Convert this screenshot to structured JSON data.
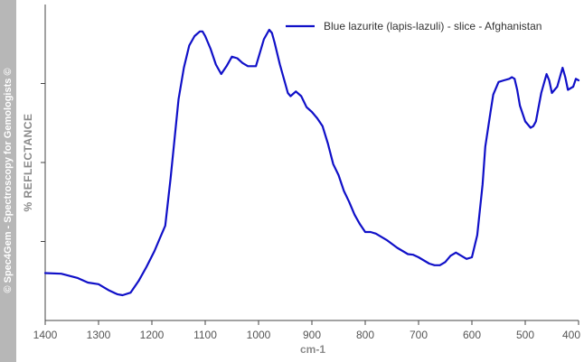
{
  "watermark": "© Spec4Gem - Spectroscopy for Gemologists ©",
  "chart_data": {
    "type": "line",
    "title": "",
    "xlabel": "cm-1",
    "ylabel": "% REFLECTANCE",
    "xlim": [
      1400,
      400
    ],
    "ylim": [
      0,
      100
    ],
    "x_ticks": [
      1400,
      1300,
      1200,
      1100,
      1000,
      900,
      800,
      700,
      600,
      500,
      400
    ],
    "x_tick_labels": [
      "1400",
      "1300",
      "1200",
      "1100",
      "1000",
      "900",
      "800",
      "700",
      "600",
      "500",
      "400"
    ],
    "y_ticks": [
      25,
      50,
      75
    ],
    "grid": false,
    "legend_position": "top-right",
    "series": [
      {
        "name": "Blue lazurite (lapis-lazuli) - slice - Afghanistan",
        "color": "#1010c8",
        "x": [
          1400,
          1370,
          1340,
          1320,
          1300,
          1280,
          1265,
          1255,
          1240,
          1225,
          1210,
          1195,
          1185,
          1175,
          1165,
          1150,
          1140,
          1130,
          1120,
          1110,
          1105,
          1100,
          1090,
          1080,
          1070,
          1060,
          1050,
          1040,
          1030,
          1020,
          1005,
          990,
          980,
          975,
          970,
          960,
          950,
          945,
          940,
          930,
          920,
          910,
          900,
          890,
          880,
          870,
          860,
          850,
          840,
          830,
          820,
          810,
          800,
          790,
          780,
          760,
          740,
          730,
          720,
          710,
          700,
          690,
          680,
          670,
          660,
          650,
          640,
          630,
          620,
          610,
          600,
          590,
          580,
          575,
          565,
          560,
          550,
          540,
          530,
          525,
          520,
          515,
          510,
          500,
          490,
          485,
          480,
          470,
          460,
          455,
          450,
          440,
          430,
          425,
          420,
          410,
          405,
          400
        ],
        "y": [
          15.0,
          14.8,
          13.5,
          12.0,
          11.5,
          9.5,
          8.3,
          8.0,
          8.8,
          12.5,
          17.0,
          22.0,
          26.0,
          30.0,
          45.0,
          70.0,
          80.0,
          87.0,
          90.0,
          91.5,
          91.5,
          90.0,
          86.0,
          81.0,
          78.0,
          80.5,
          83.5,
          83.0,
          81.5,
          80.5,
          80.5,
          89.0,
          92.0,
          91.0,
          88.0,
          81.0,
          75.0,
          72.0,
          71.0,
          72.5,
          71.0,
          67.5,
          66.0,
          64.0,
          61.5,
          56.0,
          49.5,
          46.0,
          41.0,
          37.5,
          33.5,
          30.5,
          28.0,
          28.0,
          27.5,
          25.5,
          23.0,
          22.0,
          21.0,
          20.8,
          20.0,
          19.0,
          18.0,
          17.5,
          17.5,
          18.5,
          20.5,
          21.5,
          20.5,
          19.5,
          20.0,
          27.0,
          43.0,
          55.0,
          66.0,
          71.5,
          75.5,
          76.0,
          76.5,
          77.0,
          76.5,
          73.0,
          68.0,
          63.0,
          61.0,
          61.5,
          63.0,
          72.0,
          78.0,
          76.0,
          72.0,
          74.0,
          80.0,
          77.0,
          73.0,
          74.0,
          76.5,
          76.0
        ]
      }
    ]
  }
}
